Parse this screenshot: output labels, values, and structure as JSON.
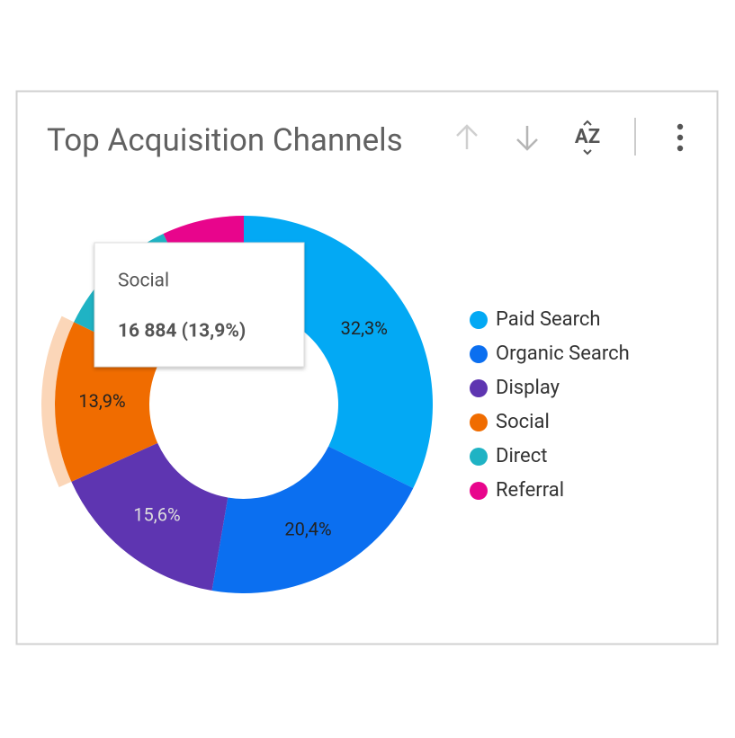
{
  "chart_data": {
    "type": "donut",
    "title": "Top Acquisition Channels",
    "categories": [
      "Paid Search",
      "Organic Search",
      "Display",
      "Social",
      "Direct",
      "Referral"
    ],
    "values": [
      32.3,
      20.4,
      15.6,
      13.9,
      10.8,
      7.0
    ],
    "value_labels": [
      "32,3%",
      "20,4%",
      "15,6%",
      "13,9%",
      null,
      null
    ],
    "colors": [
      "#03a9f4",
      "#0b6ff0",
      "#5e35b1",
      "#f06c00",
      "#1fb3c4",
      "#e8058c"
    ],
    "label_colors": [
      "#222222",
      "#222222",
      "#dddddd",
      "#222222",
      "#222222",
      "#222222"
    ],
    "legend": "right",
    "tooltip": {
      "category": "Social",
      "text": "16 884 (13,9%)"
    },
    "toolbar": {
      "sort_label": "AZ"
    }
  }
}
